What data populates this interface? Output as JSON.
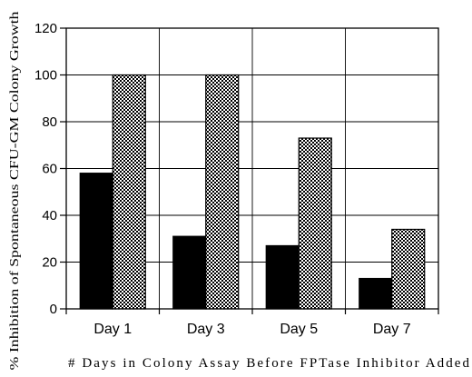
{
  "chart_data": {
    "type": "bar",
    "categories": [
      "Day 1",
      "Day 3",
      "Day 5",
      "Day 7"
    ],
    "series": [
      {
        "values": [
          58,
          31,
          27,
          13
        ],
        "color": "#000000",
        "pattern": "solid"
      },
      {
        "values": [
          100,
          100,
          73,
          34
        ],
        "color": "#000000",
        "pattern": "checkerboard"
      }
    ],
    "xlabel": "# Days in Colony Assay Before FPTase Inhibitor Added",
    "ylabel": "% Inhibition of Spontaneous CFU-GM Colony Growth",
    "ylim": [
      0,
      120
    ],
    "yticks": [
      0,
      20,
      40,
      60,
      80,
      100,
      120
    ],
    "grid": true,
    "legend": false
  }
}
